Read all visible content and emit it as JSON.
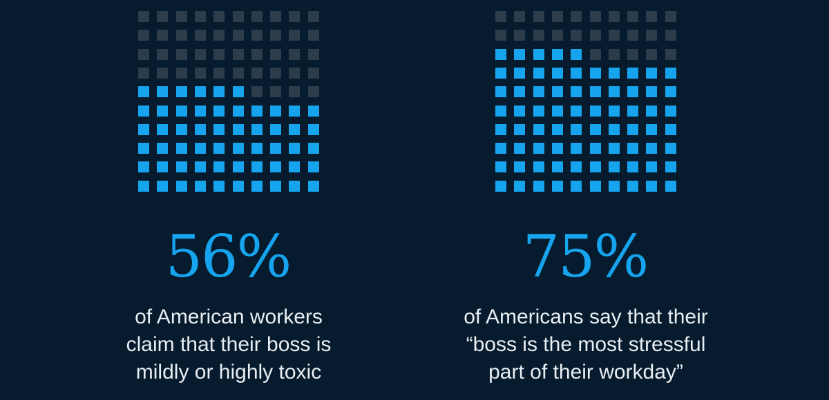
{
  "colors": {
    "background": "#061b2d",
    "filled": "#16a4ef",
    "empty": "#2d3c4b",
    "text": "#e9eef3"
  },
  "chart_data": [
    {
      "type": "waffle",
      "grid": {
        "rows": 10,
        "cols": 10
      },
      "value_percent": 56,
      "stat_label": "56%",
      "caption_lines": [
        "of American workers",
        "claim that their boss is",
        "mildly or highly toxic"
      ]
    },
    {
      "type": "waffle",
      "grid": {
        "rows": 10,
        "cols": 10
      },
      "value_percent": 75,
      "stat_label": "75%",
      "caption_lines": [
        "of Americans say that their",
        "“boss is the most stressful",
        "part of their workday”"
      ]
    }
  ]
}
